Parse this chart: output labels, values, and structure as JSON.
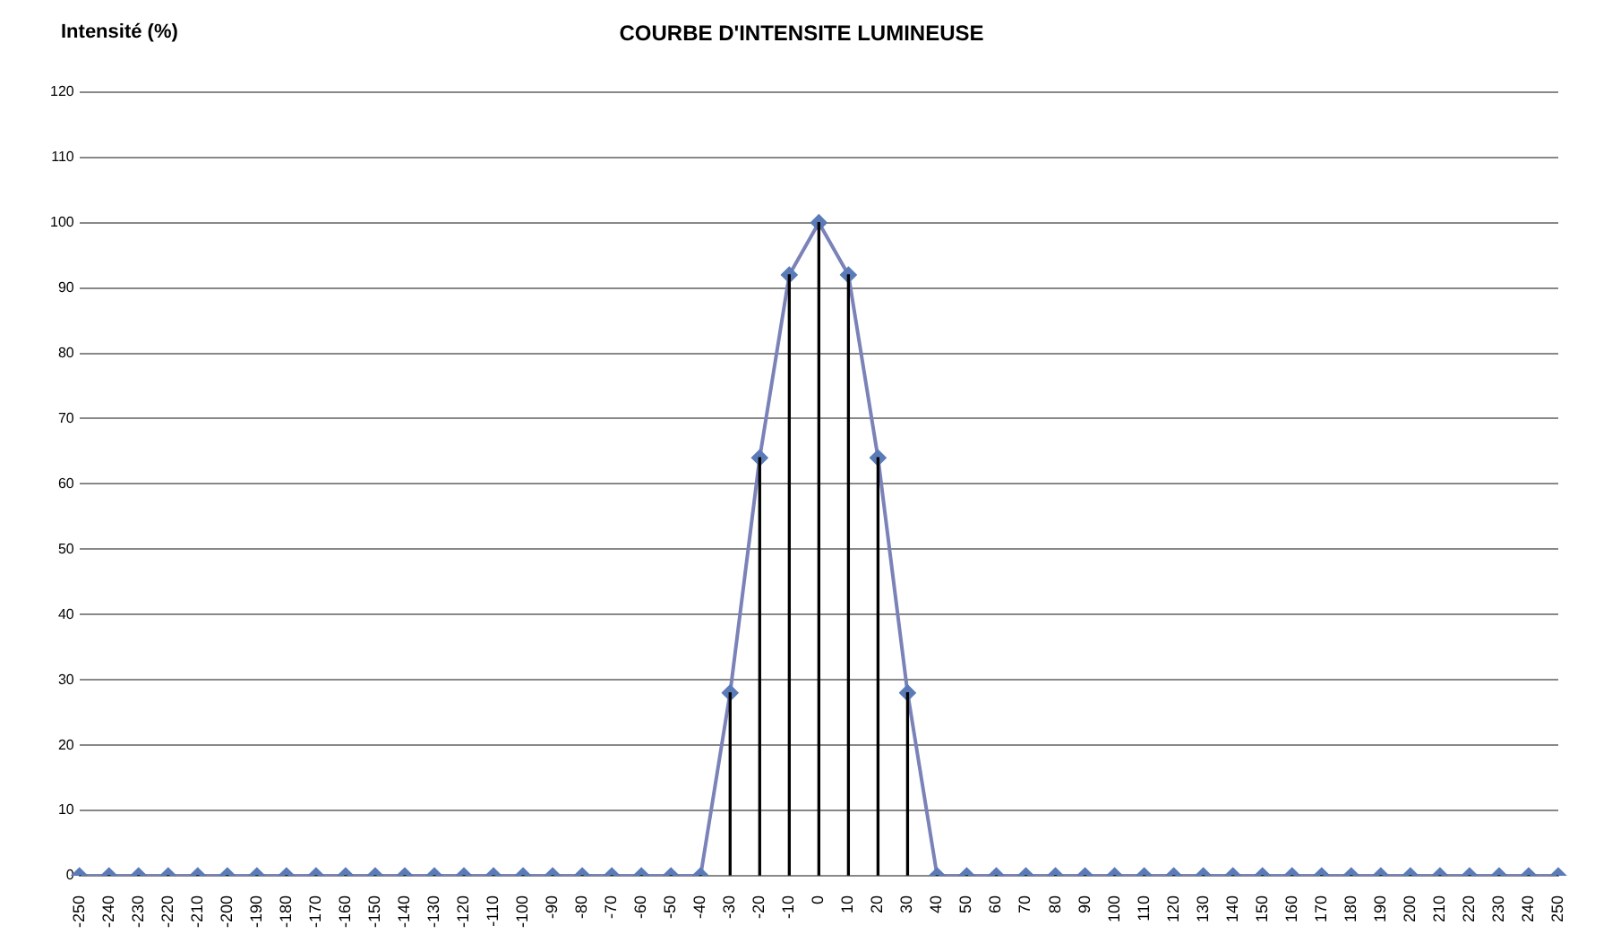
{
  "chart_data": {
    "type": "line",
    "title": "COURBE D'INTENSITE LUMINEUSE",
    "ylabel": "Intensité (%)",
    "categories": [
      "-250",
      "-240",
      "-230",
      "-220",
      "-210",
      "-200",
      "-190",
      "-180",
      "-170",
      "-160",
      "-150",
      "-140",
      "-130",
      "-120",
      "-110",
      "-100",
      "-90",
      "-80",
      "-70",
      "-60",
      "-50",
      "-40",
      "-30",
      "-20",
      "-10",
      "0",
      "10",
      "20",
      "30",
      "40",
      "50",
      "60",
      "70",
      "80",
      "90",
      "100",
      "110",
      "120",
      "130",
      "140",
      "150",
      "160",
      "170",
      "180",
      "190",
      "200",
      "210",
      "220",
      "230",
      "240",
      "250"
    ],
    "series": [
      {
        "type": "bar",
        "color": "#000000",
        "values": [
          0,
          0,
          0,
          0,
          0,
          0,
          0,
          0,
          0,
          0,
          0,
          0,
          0,
          0,
          0,
          0,
          0,
          0,
          0,
          0,
          0,
          0,
          28,
          64,
          92,
          100,
          92,
          64,
          28,
          0,
          0,
          0,
          0,
          0,
          0,
          0,
          0,
          0,
          0,
          0,
          0,
          0,
          0,
          0,
          0,
          0,
          0,
          0,
          0,
          0,
          0
        ]
      },
      {
        "color": "#7a82b8",
        "values": [
          0,
          0,
          0,
          0,
          0,
          0,
          0,
          0,
          0,
          0,
          0,
          0,
          0,
          0,
          0,
          0,
          0,
          0,
          0,
          0,
          0,
          0,
          28,
          64,
          92,
          100,
          92,
          64,
          28,
          0,
          0,
          0,
          0,
          0,
          0,
          0,
          0,
          0,
          0,
          0,
          0,
          0,
          0,
          0,
          0,
          0,
          0,
          0,
          0,
          0,
          0
        ]
      }
    ],
    "ylim": [
      0,
      120
    ],
    "yticks": [
      0,
      10,
      20,
      30,
      40,
      50,
      60,
      70,
      80,
      90,
      100,
      110,
      120
    ],
    "grid": "y",
    "marker": "diamond",
    "line_style": "solid",
    "legend": false
  }
}
